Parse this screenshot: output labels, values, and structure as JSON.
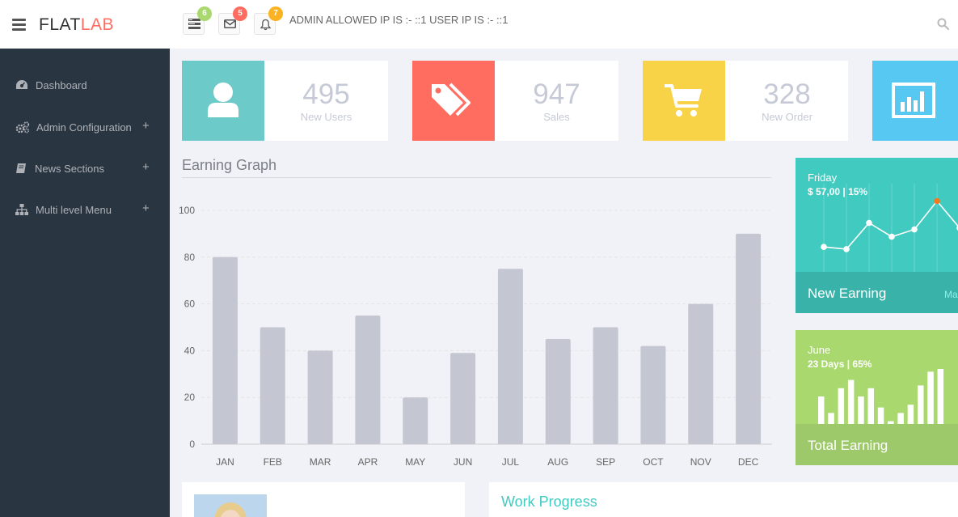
{
  "brand": {
    "part1": "FLAT",
    "part2": "LAB"
  },
  "header": {
    "notifications": [
      {
        "icon": "tasks-icon",
        "count": "6",
        "color": "#a9d86e"
      },
      {
        "icon": "envelope-icon",
        "count": "5",
        "color": "#ff6c60"
      },
      {
        "icon": "bell-icon",
        "count": "7",
        "color": "#fcb322"
      }
    ],
    "ip_info": "ADMIN ALLOWED IP IS :-  ::1   USER IP IS :-  ::1"
  },
  "sidebar": {
    "items": [
      {
        "label": "Dashboard",
        "icon": "dashboard-icon",
        "expandable": false
      },
      {
        "label": "Admin Configuration",
        "icon": "cogs-icon",
        "expandable": true
      },
      {
        "label": "News Sections",
        "icon": "book-icon",
        "expandable": true
      },
      {
        "label": "Multi level Menu",
        "icon": "sitemap-icon",
        "expandable": true
      }
    ],
    "expand_symbol": "+"
  },
  "stats": [
    {
      "value": "495",
      "label": "New Users",
      "color": "#6ccac9",
      "icon": "user-icon"
    },
    {
      "value": "947",
      "label": "Sales",
      "color": "#ff6c60",
      "icon": "tags-icon"
    },
    {
      "value": "328",
      "label": "New Order",
      "color": "#f8d347",
      "icon": "cart-icon"
    },
    {
      "value": "",
      "label": "",
      "color": "#57c8f2",
      "icon": "bar-chart-icon"
    }
  ],
  "earning_graph": {
    "title": "Earning Graph"
  },
  "chart_data": {
    "type": "bar",
    "categories": [
      "JAN",
      "FEB",
      "MAR",
      "APR",
      "MAY",
      "JUN",
      "JUL",
      "AUG",
      "SEP",
      "OCT",
      "NOV",
      "DEC"
    ],
    "values": [
      80,
      50,
      40,
      55,
      20,
      39,
      75,
      45,
      50,
      42,
      60,
      90
    ],
    "ylim": [
      0,
      100
    ],
    "yticks": [
      0,
      20,
      40,
      60,
      80,
      100
    ],
    "grid": true,
    "bar_color": "#c4c6d1"
  },
  "new_earning": {
    "day": "Friday",
    "value": "$ 57,00 | 15%",
    "title": "New Earning",
    "side_text": "Ma",
    "line_points": [
      0.22,
      0.19,
      0.55,
      0.36,
      0.46,
      0.85,
      0.48
    ],
    "highlight_index": 5
  },
  "total_earning": {
    "day": "June",
    "value": "23 Days | 65%",
    "title": "Total Earning",
    "bar_levels": [
      0.5,
      0.2,
      0.65,
      0.8,
      0.5,
      0.65,
      0.3,
      0.05,
      0.2,
      0.35,
      0.7,
      0.95,
      1.0
    ]
  },
  "work_progress": {
    "title": "Work Progress"
  }
}
